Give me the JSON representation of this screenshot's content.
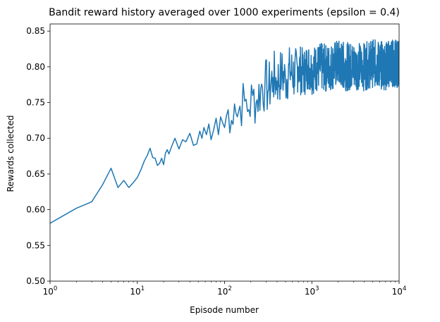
{
  "chart_data": {
    "type": "line",
    "title": "Bandit reward history averaged over 1000 experiments (epsilon = 0.4)",
    "xlabel": "Episode number",
    "ylabel": "Rewards collected",
    "xscale": "log",
    "xlim": [
      1,
      10000
    ],
    "ylim": [
      0.5,
      0.86
    ],
    "x_ticks": [
      {
        "value": 1,
        "base": "10",
        "exp": "0"
      },
      {
        "value": 10,
        "base": "10",
        "exp": "1"
      },
      {
        "value": 100,
        "base": "10",
        "exp": "2"
      },
      {
        "value": 1000,
        "base": "10",
        "exp": "3"
      },
      {
        "value": 10000,
        "base": "10",
        "exp": "4"
      }
    ],
    "y_ticks": [
      "0.50",
      "0.55",
      "0.60",
      "0.65",
      "0.70",
      "0.75",
      "0.80",
      "0.85"
    ],
    "grid": false,
    "series_color": "#1f77b4",
    "series": [
      {
        "x": [
          1,
          2,
          3,
          4,
          5,
          6,
          7,
          8,
          9,
          10,
          11,
          12,
          13,
          14,
          15,
          16,
          17,
          18,
          19,
          20,
          21,
          22,
          23,
          25,
          27,
          30,
          33,
          36,
          40,
          44,
          48,
          52,
          55,
          58,
          62,
          66,
          70,
          75,
          80,
          85,
          90,
          100,
          110,
          120,
          130,
          140,
          150,
          170,
          190,
          210,
          230,
          260,
          290,
          320,
          360,
          400,
          450,
          500,
          560,
          630,
          700,
          800,
          900,
          1000,
          1200,
          1500,
          2000,
          2500,
          3000,
          4000,
          5000,
          6000,
          7000,
          8000,
          9000,
          10000
        ],
        "values": [
          0.581,
          0.602,
          0.611,
          0.635,
          0.658,
          0.631,
          0.641,
          0.631,
          0.638,
          0.645,
          0.656,
          0.668,
          0.676,
          0.686,
          0.673,
          0.672,
          0.662,
          0.665,
          0.672,
          0.663,
          0.679,
          0.684,
          0.678,
          0.69,
          0.7,
          0.685,
          0.698,
          0.695,
          0.707,
          0.69,
          0.692,
          0.71,
          0.7,
          0.715,
          0.705,
          0.72,
          0.698,
          0.712,
          0.728,
          0.705,
          0.73,
          0.715,
          0.74,
          0.725,
          0.748,
          0.73,
          0.745,
          0.752,
          0.74,
          0.76,
          0.75,
          0.77,
          0.775,
          0.768,
          0.785,
          0.78,
          0.79,
          0.782,
          0.795,
          0.788,
          0.8,
          0.79,
          0.802,
          0.795,
          0.8,
          0.798,
          0.805,
          0.8,
          0.802,
          0.8,
          0.805,
          0.803,
          0.801,
          0.806,
          0.804,
          0.805
        ],
        "noise_band": [
          0.0,
          0.0,
          0.0,
          0.0,
          0.0,
          0.0,
          0.0,
          0.0,
          0.0,
          0.0,
          0.0,
          0.0,
          0.0,
          0.0,
          0.0,
          0.0,
          0.004,
          0.004,
          0.004,
          0.006,
          0.006,
          0.007,
          0.008,
          0.01,
          0.012,
          0.014,
          0.016,
          0.018,
          0.02,
          0.022,
          0.024,
          0.025,
          0.026,
          0.027,
          0.028,
          0.028,
          0.029,
          0.03,
          0.03,
          0.03,
          0.031,
          0.032,
          0.032,
          0.033,
          0.034,
          0.035,
          0.035,
          0.036,
          0.037,
          0.038,
          0.038,
          0.04,
          0.04,
          0.04,
          0.04,
          0.038,
          0.038,
          0.037,
          0.036,
          0.036,
          0.035,
          0.035,
          0.034,
          0.034,
          0.034,
          0.034,
          0.034,
          0.034,
          0.034,
          0.034,
          0.034,
          0.034,
          0.034,
          0.034,
          0.034,
          0.034
        ]
      }
    ]
  }
}
